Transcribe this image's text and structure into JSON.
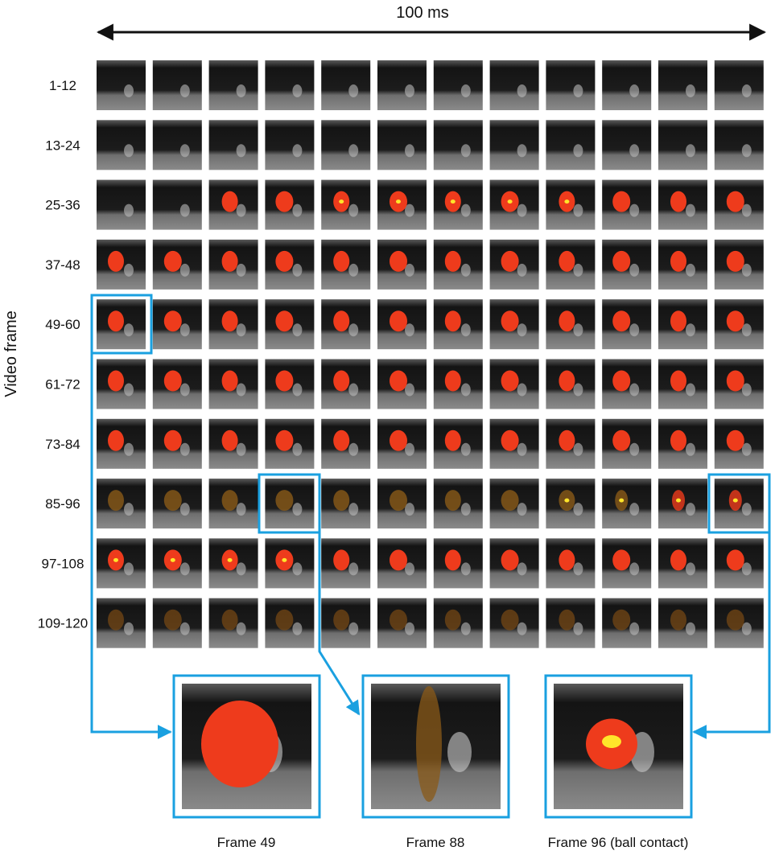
{
  "header": {
    "title": "100 ms"
  },
  "axis_label": "Video frame",
  "rows": [
    "1-12",
    "13-24",
    "25-36",
    "37-48",
    "49-60",
    "61-72",
    "73-84",
    "85-96",
    "97-108",
    "109-120"
  ],
  "zoom_labels": [
    "Frame 49",
    "Frame 88",
    "Frame 96 (ball contact)"
  ]
}
